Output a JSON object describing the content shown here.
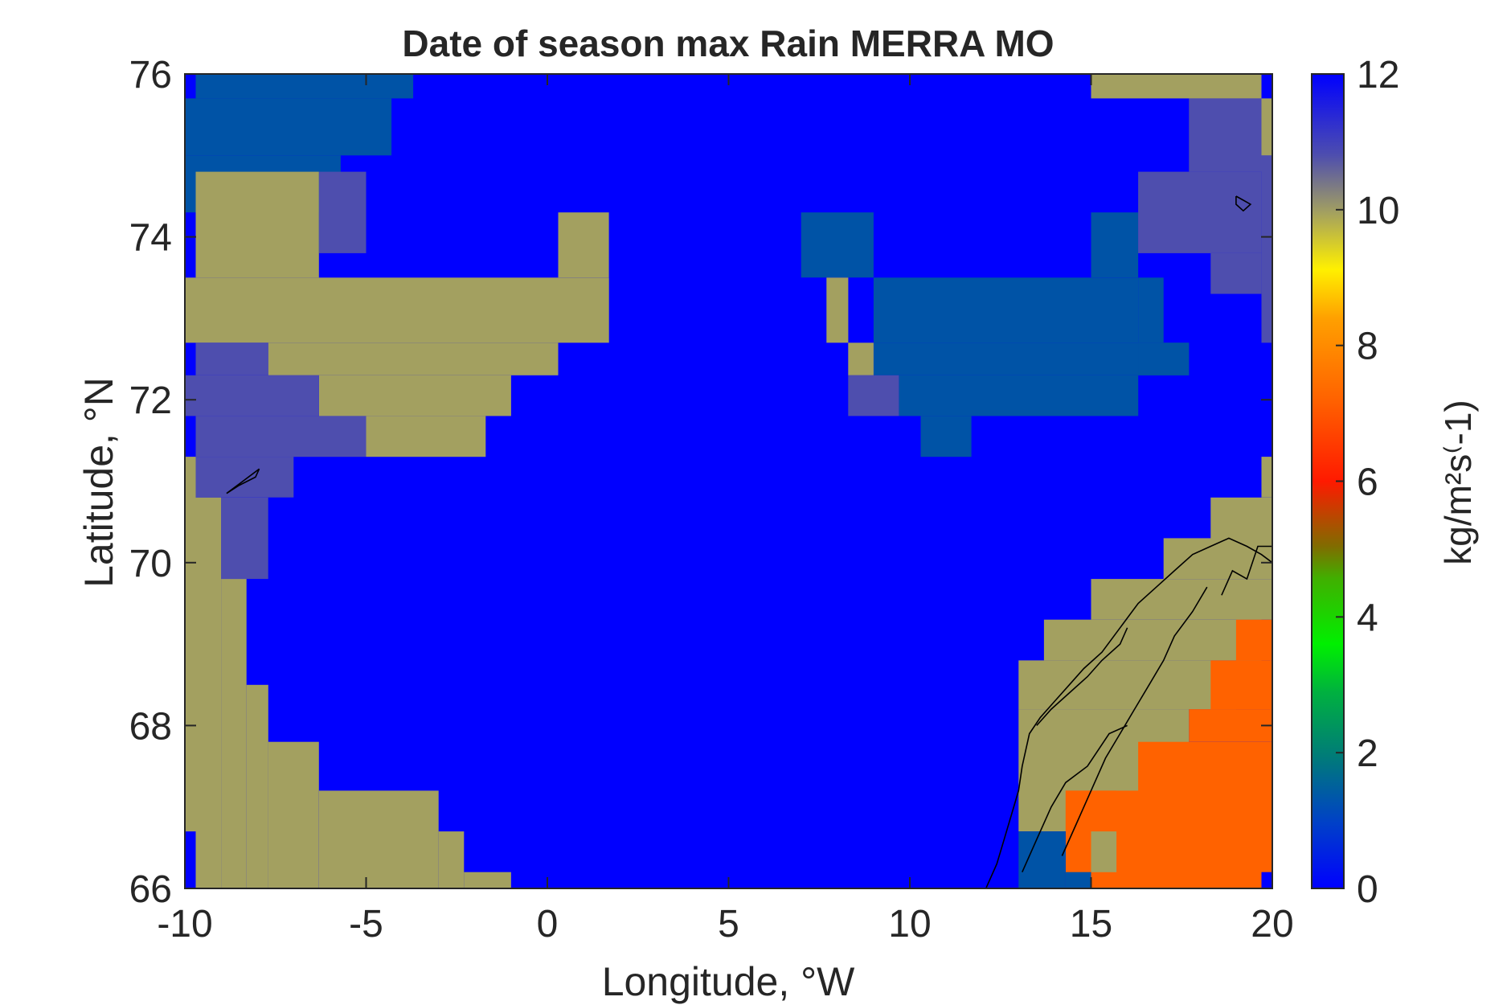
{
  "chart_data": {
    "type": "heatmap",
    "title": "Date of season max Rain MERRA MO",
    "xlabel": "Longitude, °W",
    "ylabel": "Latitude, °N",
    "colorbar_label": "kg/m²s⁽-1)",
    "xlim": [
      -10,
      20
    ],
    "ylim": [
      66,
      76
    ],
    "xticks": [
      -10,
      -5,
      0,
      5,
      10,
      15,
      20
    ],
    "yticks": [
      66,
      68,
      70,
      72,
      74,
      76
    ],
    "colorbar": {
      "range": [
        0,
        12
      ],
      "ticks": [
        0,
        2,
        4,
        6,
        8,
        10,
        12
      ]
    },
    "grid": "off",
    "legend": "colorbar right",
    "grid_cell": {
      "dlon": 0.667,
      "dlat": 0.5
    },
    "value_colors": {
      "0.9": "#0053A6",
      "6.8": "#FF6200",
      "10.1": "#A3A060",
      "10.9": "#4E4EAE",
      "12": "#0000FF"
    },
    "cells": [
      {
        "lon": [
          -10,
          20
        ],
        "lat": [
          66,
          76
        ],
        "value": 12
      },
      {
        "lon": [
          -9.7,
          -3.7
        ],
        "lat": [
          75.7,
          76
        ],
        "value": 0.9
      },
      {
        "lon": [
          -10,
          -4.3
        ],
        "lat": [
          75,
          75.7
        ],
        "value": 0.9
      },
      {
        "lon": [
          -10,
          -5.7
        ],
        "lat": [
          74.3,
          75
        ],
        "value": 0.9
      },
      {
        "lon": [
          -9.7,
          -6.3
        ],
        "lat": [
          73.8,
          74.3
        ],
        "value": 0.9
      },
      {
        "lon": [
          -9.7,
          -6.3
        ],
        "lat": [
          73.5,
          74.8
        ],
        "value": 10.1
      },
      {
        "lon": [
          -10,
          1.7
        ],
        "lat": [
          72.7,
          73.5
        ],
        "value": 10.1
      },
      {
        "lon": [
          0.3,
          1.7
        ],
        "lat": [
          73.5,
          74.3
        ],
        "value": 10.1
      },
      {
        "lon": [
          -7.7,
          0.3
        ],
        "lat": [
          72.3,
          72.7
        ],
        "value": 10.1
      },
      {
        "lon": [
          -6.3,
          -1.0
        ],
        "lat": [
          71.8,
          72.3
        ],
        "value": 10.1
      },
      {
        "lon": [
          -5.0,
          -1.7
        ],
        "lat": [
          71.3,
          71.8
        ],
        "value": 10.1
      },
      {
        "lon": [
          -6.3,
          -5.0
        ],
        "lat": [
          73.8,
          74.8
        ],
        "value": 10.9
      },
      {
        "lon": [
          -9.7,
          -7.7
        ],
        "lat": [
          72.3,
          72.7
        ],
        "value": 10.9
      },
      {
        "lon": [
          -10,
          -6.3
        ],
        "lat": [
          71.8,
          72.3
        ],
        "value": 10.9
      },
      {
        "lon": [
          -9.7,
          -5.0
        ],
        "lat": [
          71.3,
          71.8
        ],
        "value": 10.9
      },
      {
        "lon": [
          -9.7,
          -7.0
        ],
        "lat": [
          70.8,
          71.3
        ],
        "value": 10.9
      },
      {
        "lon": [
          -9.0,
          -7.7
        ],
        "lat": [
          69.8,
          70.8
        ],
        "value": 10.9
      },
      {
        "lon": [
          -10,
          -9.7
        ],
        "lat": [
          66.7,
          71.3
        ],
        "value": 10.1
      },
      {
        "lon": [
          -9.7,
          -9.0
        ],
        "lat": [
          66,
          70.8
        ],
        "value": 10.1
      },
      {
        "lon": [
          -9.0,
          -8.3
        ],
        "lat": [
          66,
          69.8
        ],
        "value": 10.1
      },
      {
        "lon": [
          -8.3,
          -7.7
        ],
        "lat": [
          66,
          68.5
        ],
        "value": 10.1
      },
      {
        "lon": [
          -7.7,
          -6.3
        ],
        "lat": [
          66,
          67.8
        ],
        "value": 10.1
      },
      {
        "lon": [
          -6.3,
          -3.0
        ],
        "lat": [
          66,
          67.2
        ],
        "value": 10.1
      },
      {
        "lon": [
          -3.0,
          -2.3
        ],
        "lat": [
          66,
          66.7
        ],
        "value": 10.1
      },
      {
        "lon": [
          -2.3,
          -1.0
        ],
        "lat": [
          66,
          66.2
        ],
        "value": 10.1
      },
      {
        "lon": [
          7.0,
          9.0
        ],
        "lat": [
          73.5,
          74.3
        ],
        "value": 0.9
      },
      {
        "lon": [
          9.0,
          16.3
        ],
        "lat": [
          72.7,
          73.5
        ],
        "value": 0.9
      },
      {
        "lon": [
          15.0,
          16.3
        ],
        "lat": [
          73.5,
          74.3
        ],
        "value": 0.9
      },
      {
        "lon": [
          16.3,
          17.0
        ],
        "lat": [
          72.7,
          73.5
        ],
        "value": 0.9
      },
      {
        "lon": [
          9.0,
          17.7
        ],
        "lat": [
          72.3,
          72.7
        ],
        "value": 0.9
      },
      {
        "lon": [
          9.7,
          16.3
        ],
        "lat": [
          71.8,
          72.3
        ],
        "value": 0.9
      },
      {
        "lon": [
          10.3,
          11.7
        ],
        "lat": [
          71.3,
          71.8
        ],
        "value": 0.9
      },
      {
        "lon": [
          16.3,
          17.7
        ],
        "lat": [
          72.3,
          72.7
        ],
        "value": 0.9
      },
      {
        "lon": [
          7.7,
          8.3
        ],
        "lat": [
          72.7,
          73.5
        ],
        "value": 10.1
      },
      {
        "lon": [
          8.3,
          9.0
        ],
        "lat": [
          72.3,
          72.7
        ],
        "value": 10.1
      },
      {
        "lon": [
          8.3,
          9.7
        ],
        "lat": [
          71.8,
          72.3
        ],
        "value": 10.9
      },
      {
        "lon": [
          17.7,
          19.7
        ],
        "lat": [
          74.8,
          75.7
        ],
        "value": 10.9
      },
      {
        "lon": [
          16.3,
          19.7
        ],
        "lat": [
          73.8,
          74.8
        ],
        "value": 10.9
      },
      {
        "lon": [
          18.3,
          19.7
        ],
        "lat": [
          73.3,
          73.8
        ],
        "value": 10.9
      },
      {
        "lon": [
          19.7,
          20
        ],
        "lat": [
          72.7,
          75
        ],
        "value": 10.9
      },
      {
        "lon": [
          15.0,
          19.7
        ],
        "lat": [
          75.7,
          76
        ],
        "value": 10.1
      },
      {
        "lon": [
          19.7,
          20
        ],
        "lat": [
          75,
          75.7
        ],
        "value": 10.1
      },
      {
        "lon": [
          17.0,
          20
        ],
        "lat": [
          69.8,
          70.3
        ],
        "value": 10.1
      },
      {
        "lon": [
          18.3,
          20
        ],
        "lat": [
          70.3,
          70.8
        ],
        "value": 10.1
      },
      {
        "lon": [
          19.7,
          20
        ],
        "lat": [
          70.8,
          71.3
        ],
        "value": 10.1
      },
      {
        "lon": [
          15.0,
          20
        ],
        "lat": [
          69.3,
          69.8
        ],
        "value": 10.1
      },
      {
        "lon": [
          13.7,
          19.7
        ],
        "lat": [
          68.8,
          69.3
        ],
        "value": 10.1
      },
      {
        "lon": [
          13.0,
          19.0
        ],
        "lat": [
          68.2,
          68.8
        ],
        "value": 10.1
      },
      {
        "lon": [
          13.0,
          17.7
        ],
        "lat": [
          66.7,
          68.2
        ],
        "value": 10.1
      },
      {
        "lon": [
          15.7,
          16.3
        ],
        "lat": [
          66,
          66.7
        ],
        "value": 10.1
      },
      {
        "lon": [
          18.3,
          20
        ],
        "lat": [
          68.2,
          68.8
        ],
        "value": 6.8
      },
      {
        "lon": [
          19.0,
          20
        ],
        "lat": [
          68.8,
          69.3
        ],
        "value": 6.8
      },
      {
        "lon": [
          17.7,
          20
        ],
        "lat": [
          67.8,
          68.2
        ],
        "value": 6.8
      },
      {
        "lon": [
          16.3,
          20
        ],
        "lat": [
          67.2,
          67.8
        ],
        "value": 6.8
      },
      {
        "lon": [
          14.3,
          20
        ],
        "lat": [
          66,
          67.2
        ],
        "value": 6.8
      },
      {
        "lon": [
          14.3,
          15.7
        ],
        "lat": [
          66.7,
          67.2
        ],
        "value": 6.8
      },
      {
        "lon": [
          15.0,
          15.7
        ],
        "lat": [
          66.2,
          66.7
        ],
        "value": 10.1
      },
      {
        "lon": [
          13.0,
          14.3
        ],
        "lat": [
          66,
          66.7
        ],
        "value": 0.9
      },
      {
        "lon": [
          14.3,
          15.0
        ],
        "lat": [
          66,
          66.2
        ],
        "value": 0.9
      },
      {
        "lon": [
          19.7,
          20
        ],
        "lat": [
          66,
          66.2
        ],
        "value": 12
      }
    ],
    "coastlines": [
      [
        [
          -8.85,
          70.85
        ],
        [
          -8.4,
          71.0
        ],
        [
          -7.95,
          71.15
        ],
        [
          -8.05,
          71.05
        ],
        [
          -8.5,
          70.95
        ],
        [
          -8.85,
          70.85
        ]
      ],
      [
        [
          19.0,
          74.5
        ],
        [
          19.2,
          74.45
        ],
        [
          19.4,
          74.4
        ],
        [
          19.2,
          74.32
        ],
        [
          19.0,
          74.4
        ],
        [
          19.0,
          74.5
        ]
      ],
      [
        [
          12.1,
          66.0
        ],
        [
          12.4,
          66.3
        ],
        [
          12.6,
          66.6
        ],
        [
          12.8,
          66.9
        ],
        [
          13.0,
          67.2
        ],
        [
          13.1,
          67.5
        ],
        [
          13.3,
          67.9
        ],
        [
          13.6,
          68.1
        ],
        [
          14.0,
          68.3
        ],
        [
          14.4,
          68.5
        ],
        [
          14.8,
          68.7
        ],
        [
          15.3,
          68.9
        ],
        [
          15.8,
          69.2
        ],
        [
          16.3,
          69.5
        ],
        [
          16.8,
          69.7
        ],
        [
          17.3,
          69.9
        ],
        [
          17.8,
          70.1
        ],
        [
          18.3,
          70.2
        ],
        [
          18.8,
          70.3
        ],
        [
          19.3,
          70.2
        ],
        [
          19.7,
          70.1
        ],
        [
          20.0,
          70.0
        ]
      ],
      [
        [
          13.5,
          68.0
        ],
        [
          13.9,
          68.2
        ],
        [
          14.4,
          68.4
        ],
        [
          14.9,
          68.6
        ],
        [
          15.3,
          68.8
        ],
        [
          15.8,
          69.0
        ],
        [
          16.0,
          69.2
        ]
      ],
      [
        [
          14.2,
          66.4
        ],
        [
          14.6,
          66.8
        ],
        [
          15.0,
          67.2
        ],
        [
          15.4,
          67.6
        ],
        [
          15.8,
          67.9
        ],
        [
          16.2,
          68.2
        ],
        [
          16.6,
          68.5
        ],
        [
          17.0,
          68.8
        ],
        [
          17.3,
          69.1
        ],
        [
          17.8,
          69.4
        ],
        [
          18.2,
          69.7
        ]
      ],
      [
        [
          13.1,
          66.2
        ],
        [
          13.5,
          66.6
        ],
        [
          13.9,
          67.0
        ],
        [
          14.3,
          67.3
        ],
        [
          14.9,
          67.5
        ],
        [
          15.5,
          67.9
        ],
        [
          16.0,
          68.0
        ]
      ],
      [
        [
          18.6,
          69.6
        ],
        [
          18.9,
          69.9
        ],
        [
          19.3,
          69.8
        ],
        [
          19.6,
          70.2
        ],
        [
          20.0,
          70.2
        ]
      ]
    ]
  }
}
